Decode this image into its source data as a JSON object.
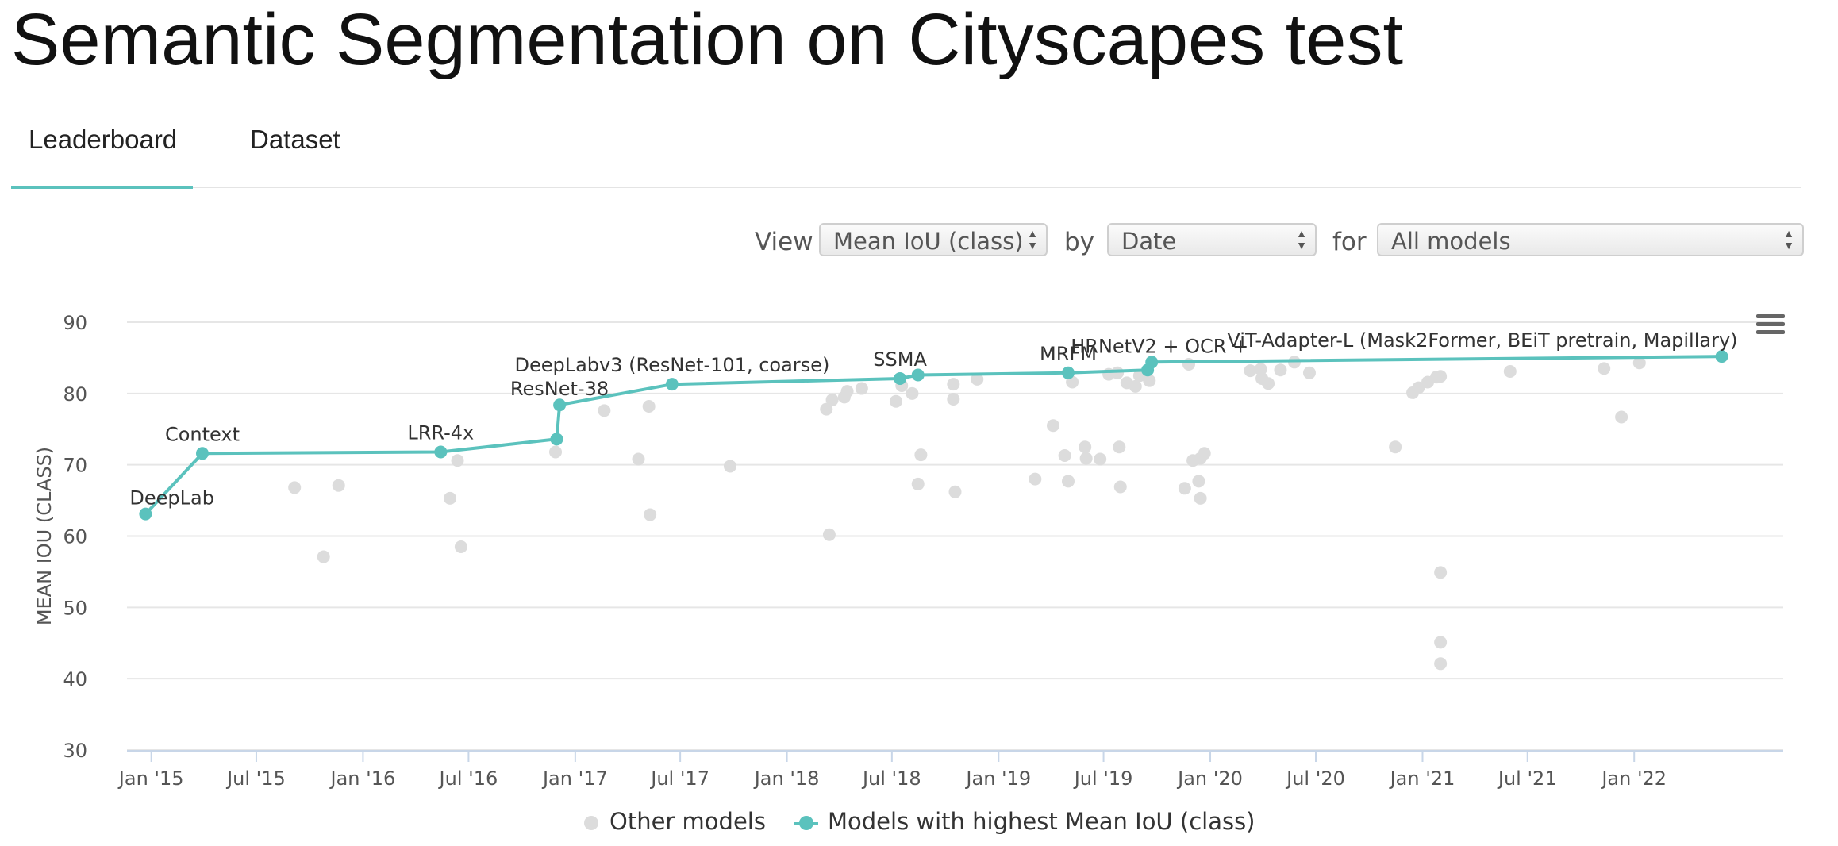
{
  "page": {
    "title": "Semantic Segmentation on Cityscapes test"
  },
  "tabs": [
    {
      "label": "Leaderboard",
      "active": true
    },
    {
      "label": "Dataset",
      "active": false
    }
  ],
  "controls": {
    "view_label": "View",
    "view_value": "Mean IoU (class)",
    "by_label": "by",
    "by_value": "Date",
    "for_label": "for",
    "for_value": "All models"
  },
  "legend": {
    "other": "Other models",
    "best": "Models with highest Mean IoU (class)"
  },
  "colors": {
    "accent": "#5bc2bd",
    "other_points": "#dcdcdc",
    "grid": "#e6e6e6"
  },
  "icons": {
    "menu": "hamburger-menu-icon"
  },
  "chart_data": {
    "type": "scatter",
    "ylabel": "MEAN IOU (CLASS)",
    "xlabel": "",
    "ylim": [
      30,
      90
    ],
    "yticks": [
      30,
      40,
      50,
      60,
      70,
      80,
      90
    ],
    "xlim": [
      "2014-11-20",
      "2022-09-15"
    ],
    "xticks": [
      {
        "date": "2015-01-01",
        "label": "Jan '15"
      },
      {
        "date": "2015-07-01",
        "label": "Jul '15"
      },
      {
        "date": "2016-01-01",
        "label": "Jan '16"
      },
      {
        "date": "2016-07-01",
        "label": "Jul '16"
      },
      {
        "date": "2017-01-01",
        "label": "Jan '17"
      },
      {
        "date": "2017-07-01",
        "label": "Jul '17"
      },
      {
        "date": "2018-01-01",
        "label": "Jan '18"
      },
      {
        "date": "2018-07-01",
        "label": "Jul '18"
      },
      {
        "date": "2019-01-01",
        "label": "Jan '19"
      },
      {
        "date": "2019-07-01",
        "label": "Jul '19"
      },
      {
        "date": "2020-01-01",
        "label": "Jan '20"
      },
      {
        "date": "2020-07-01",
        "label": "Jul '20"
      },
      {
        "date": "2021-01-01",
        "label": "Jan '21"
      },
      {
        "date": "2021-07-01",
        "label": "Jul '21"
      },
      {
        "date": "2022-01-01",
        "label": "Jan '22"
      }
    ],
    "grid": true,
    "legend_position": "bottom-center",
    "series": [
      {
        "name": "Models with highest Mean IoU (class)",
        "points": [
          {
            "x": "2014-12-22",
            "y": 63.1,
            "label": "DeepLab"
          },
          {
            "x": "2015-03-30",
            "y": 71.6,
            "label": "Context"
          },
          {
            "x": "2016-05-14",
            "y": 71.8,
            "label": "LRR-4x"
          },
          {
            "x": "2016-11-30",
            "y": 73.6,
            "label": ""
          },
          {
            "x": "2016-12-05",
            "y": 78.4,
            "label": "ResNet-38"
          },
          {
            "x": "2017-06-17",
            "y": 81.3,
            "label": "DeepLabv3 (ResNet-101, coarse)"
          },
          {
            "x": "2018-07-15",
            "y": 82.1,
            "label": "SSMA"
          },
          {
            "x": "2018-08-15",
            "y": 82.6,
            "label": ""
          },
          {
            "x": "2019-05-01",
            "y": 82.9,
            "label": "MRFM"
          },
          {
            "x": "2019-09-15",
            "y": 83.3,
            "label": ""
          },
          {
            "x": "2019-09-22",
            "y": 84.4,
            "label": "HRNetV2 + OCR +"
          },
          {
            "x": "2022-06-01",
            "y": 85.2,
            "label": "ViT-Adapter-L (Mask2Former, BEiT pretrain, Mapillary)"
          }
        ]
      },
      {
        "name": "Other models",
        "points": [
          {
            "x": "2015-09-05",
            "y": 66.8
          },
          {
            "x": "2015-10-25",
            "y": 57.1
          },
          {
            "x": "2015-11-20",
            "y": 67.1
          },
          {
            "x": "2016-05-30",
            "y": 65.3
          },
          {
            "x": "2016-06-12",
            "y": 70.6
          },
          {
            "x": "2016-06-18",
            "y": 58.5
          },
          {
            "x": "2016-11-28",
            "y": 71.8
          },
          {
            "x": "2017-02-20",
            "y": 77.6
          },
          {
            "x": "2017-04-20",
            "y": 70.8
          },
          {
            "x": "2017-05-08",
            "y": 78.2
          },
          {
            "x": "2017-05-10",
            "y": 63.0
          },
          {
            "x": "2017-09-25",
            "y": 69.8
          },
          {
            "x": "2018-03-10",
            "y": 77.8
          },
          {
            "x": "2018-03-15",
            "y": 60.2
          },
          {
            "x": "2018-03-20",
            "y": 79.1
          },
          {
            "x": "2018-04-10",
            "y": 79.5
          },
          {
            "x": "2018-04-15",
            "y": 80.3
          },
          {
            "x": "2018-05-10",
            "y": 80.7
          },
          {
            "x": "2018-07-08",
            "y": 78.9
          },
          {
            "x": "2018-07-18",
            "y": 81.1
          },
          {
            "x": "2018-08-05",
            "y": 80.0
          },
          {
            "x": "2018-08-15",
            "y": 67.3
          },
          {
            "x": "2018-08-20",
            "y": 71.4
          },
          {
            "x": "2018-10-15",
            "y": 81.3
          },
          {
            "x": "2018-10-15",
            "y": 79.2
          },
          {
            "x": "2018-10-18",
            "y": 66.2
          },
          {
            "x": "2018-11-25",
            "y": 82.0
          },
          {
            "x": "2019-03-05",
            "y": 68.0
          },
          {
            "x": "2019-04-05",
            "y": 75.5
          },
          {
            "x": "2019-04-25",
            "y": 71.3
          },
          {
            "x": "2019-05-01",
            "y": 67.7
          },
          {
            "x": "2019-05-08",
            "y": 81.6
          },
          {
            "x": "2019-05-30",
            "y": 72.5
          },
          {
            "x": "2019-06-01",
            "y": 70.9
          },
          {
            "x": "2019-06-25",
            "y": 70.8
          },
          {
            "x": "2019-07-10",
            "y": 82.7
          },
          {
            "x": "2019-07-25",
            "y": 82.9
          },
          {
            "x": "2019-07-28",
            "y": 72.5
          },
          {
            "x": "2019-07-30",
            "y": 66.9
          },
          {
            "x": "2019-08-10",
            "y": 81.5
          },
          {
            "x": "2019-08-25",
            "y": 81.0
          },
          {
            "x": "2019-09-01",
            "y": 82.5
          },
          {
            "x": "2019-09-18",
            "y": 81.8
          },
          {
            "x": "2019-11-18",
            "y": 66.7
          },
          {
            "x": "2019-11-25",
            "y": 84.1
          },
          {
            "x": "2019-12-02",
            "y": 70.6
          },
          {
            "x": "2019-12-12",
            "y": 67.7
          },
          {
            "x": "2019-12-15",
            "y": 65.3
          },
          {
            "x": "2019-12-15",
            "y": 70.9
          },
          {
            "x": "2019-12-22",
            "y": 71.6
          },
          {
            "x": "2020-03-10",
            "y": 83.2
          },
          {
            "x": "2020-03-28",
            "y": 83.4
          },
          {
            "x": "2020-03-30",
            "y": 82.1
          },
          {
            "x": "2020-04-10",
            "y": 81.4
          },
          {
            "x": "2020-05-01",
            "y": 83.3
          },
          {
            "x": "2020-05-25",
            "y": 84.4
          },
          {
            "x": "2020-06-20",
            "y": 82.9
          },
          {
            "x": "2020-11-15",
            "y": 72.5
          },
          {
            "x": "2020-12-15",
            "y": 80.1
          },
          {
            "x": "2020-12-25",
            "y": 80.8
          },
          {
            "x": "2021-01-10",
            "y": 81.6
          },
          {
            "x": "2021-01-25",
            "y": 82.3
          },
          {
            "x": "2021-02-01",
            "y": 82.4
          },
          {
            "x": "2021-02-01",
            "y": 54.9
          },
          {
            "x": "2021-02-01",
            "y": 45.1
          },
          {
            "x": "2021-02-01",
            "y": 42.1
          },
          {
            "x": "2021-06-01",
            "y": 83.1
          },
          {
            "x": "2021-11-10",
            "y": 83.5
          },
          {
            "x": "2021-12-10",
            "y": 76.7
          },
          {
            "x": "2022-01-10",
            "y": 84.3
          }
        ]
      }
    ]
  }
}
